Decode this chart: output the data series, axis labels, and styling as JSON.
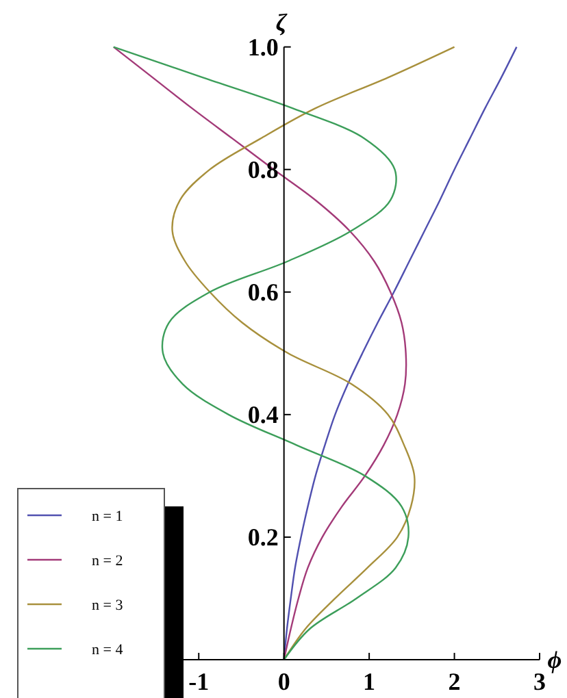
{
  "chart_data": {
    "type": "line",
    "xlabel": "ϕ",
    "ylabel": "ζ",
    "xlim": [
      -2,
      3
    ],
    "ylim": [
      0,
      1
    ],
    "xticks": [
      -1,
      0,
      1,
      2,
      3
    ],
    "yticks": [
      {
        "value": 0.2,
        "label": "0.2"
      },
      {
        "value": 0.4,
        "label": "0.4"
      },
      {
        "value": 0.6,
        "label": "0.6"
      },
      {
        "value": 0.8,
        "label": "0.8"
      },
      {
        "value": 1,
        "label": "1.0"
      }
    ],
    "grid": false,
    "legend": "bottom left",
    "marker": "none",
    "line_style": "solid",
    "series": [
      {
        "name": "n = 1",
        "color": "#5050b0",
        "x": [
          0,
          0.035,
          0.08,
          0.13,
          0.2,
          0.28,
          0.37,
          0.48,
          0.6,
          0.75,
          0.92,
          1.1,
          1.29,
          1.47,
          1.65,
          1.83,
          2.0,
          2.18,
          2.36,
          2.55,
          2.73
        ],
        "values": [
          0,
          0.05,
          0.1,
          0.15,
          0.2,
          0.25,
          0.3,
          0.35,
          0.4,
          0.45,
          0.5,
          0.55,
          0.6,
          0.65,
          0.7,
          0.75,
          0.8,
          0.85,
          0.9,
          0.95,
          1
        ]
      },
      {
        "name": "n = 2",
        "color": "#a33a78",
        "x": [
          0,
          0.08,
          0.17,
          0.28,
          0.45,
          0.68,
          0.95,
          1.17,
          1.33,
          1.42,
          1.43,
          1.38,
          1.25,
          1.06,
          0.77,
          0.37,
          -0.12,
          -0.6,
          -1.08,
          -1.54,
          -2
        ],
        "values": [
          0,
          0.05,
          0.1,
          0.15,
          0.2,
          0.25,
          0.3,
          0.35,
          0.4,
          0.45,
          0.5,
          0.55,
          0.6,
          0.65,
          0.7,
          0.75,
          0.8,
          0.85,
          0.9,
          0.95,
          1
        ]
      },
      {
        "name": "n = 3",
        "color": "#a8903c",
        "x": [
          0,
          0.25,
          0.6,
          0.98,
          1.33,
          1.49,
          1.53,
          1.41,
          1.22,
          0.79,
          0.05,
          -0.49,
          -0.87,
          -1.16,
          -1.31,
          -1.22,
          -0.87,
          -0.28,
          0.37,
          1.22,
          2
        ],
        "values": [
          0,
          0.05,
          0.1,
          0.15,
          0.2,
          0.25,
          0.3,
          0.35,
          0.4,
          0.45,
          0.5,
          0.55,
          0.6,
          0.65,
          0.7,
          0.75,
          0.8,
          0.85,
          0.9,
          0.95,
          1
        ]
      },
      {
        "name": "n = 4",
        "color": "#3c9e5a",
        "x": [
          0,
          0.3,
          0.85,
          1.31,
          1.46,
          1.38,
          0.95,
          0.15,
          -0.65,
          -1.19,
          -1.42,
          -1.35,
          -0.87,
          0.04,
          0.79,
          1.25,
          1.3,
          0.95,
          0.1,
          -0.95,
          -2
        ],
        "values": [
          0,
          0.05,
          0.1,
          0.15,
          0.2,
          0.25,
          0.3,
          0.35,
          0.4,
          0.45,
          0.5,
          0.55,
          0.6,
          0.65,
          0.7,
          0.75,
          0.8,
          0.85,
          0.9,
          0.95,
          1
        ]
      }
    ]
  }
}
